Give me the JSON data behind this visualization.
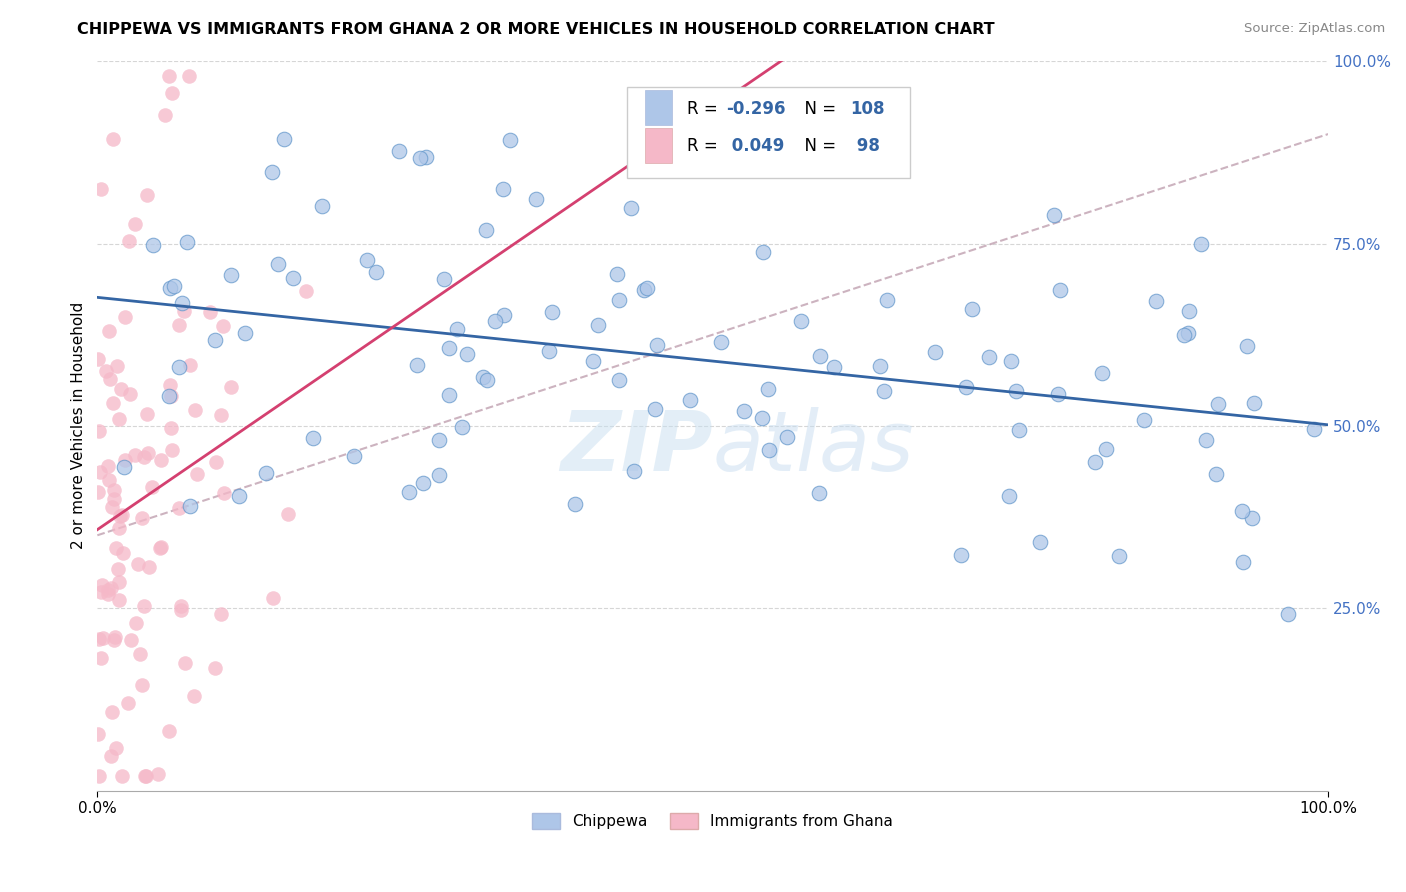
{
  "title": "CHIPPEWA VS IMMIGRANTS FROM GHANA 2 OR MORE VEHICLES IN HOUSEHOLD CORRELATION CHART",
  "source": "Source: ZipAtlas.com",
  "ylabel": "2 or more Vehicles in Household",
  "xlim": [
    0.0,
    100.0
  ],
  "ylim": [
    0.0,
    100.0
  ],
  "legend_label1": "Chippewa",
  "legend_label2": "Immigrants from Ghana",
  "R1": -0.296,
  "N1": 108,
  "R2": 0.049,
  "N2": 98,
  "color_blue": "#aec6e8",
  "color_pink": "#f5b8c8",
  "color_blue_line": "#3465a4",
  "color_pink_line": "#d44070",
  "color_gray_dashed": "#c0a0b0",
  "background_color": "#ffffff",
  "grid_color": "#cccccc",
  "watermark_color": "#d8e8f0",
  "seed_chip": 77,
  "seed_ghana": 55
}
